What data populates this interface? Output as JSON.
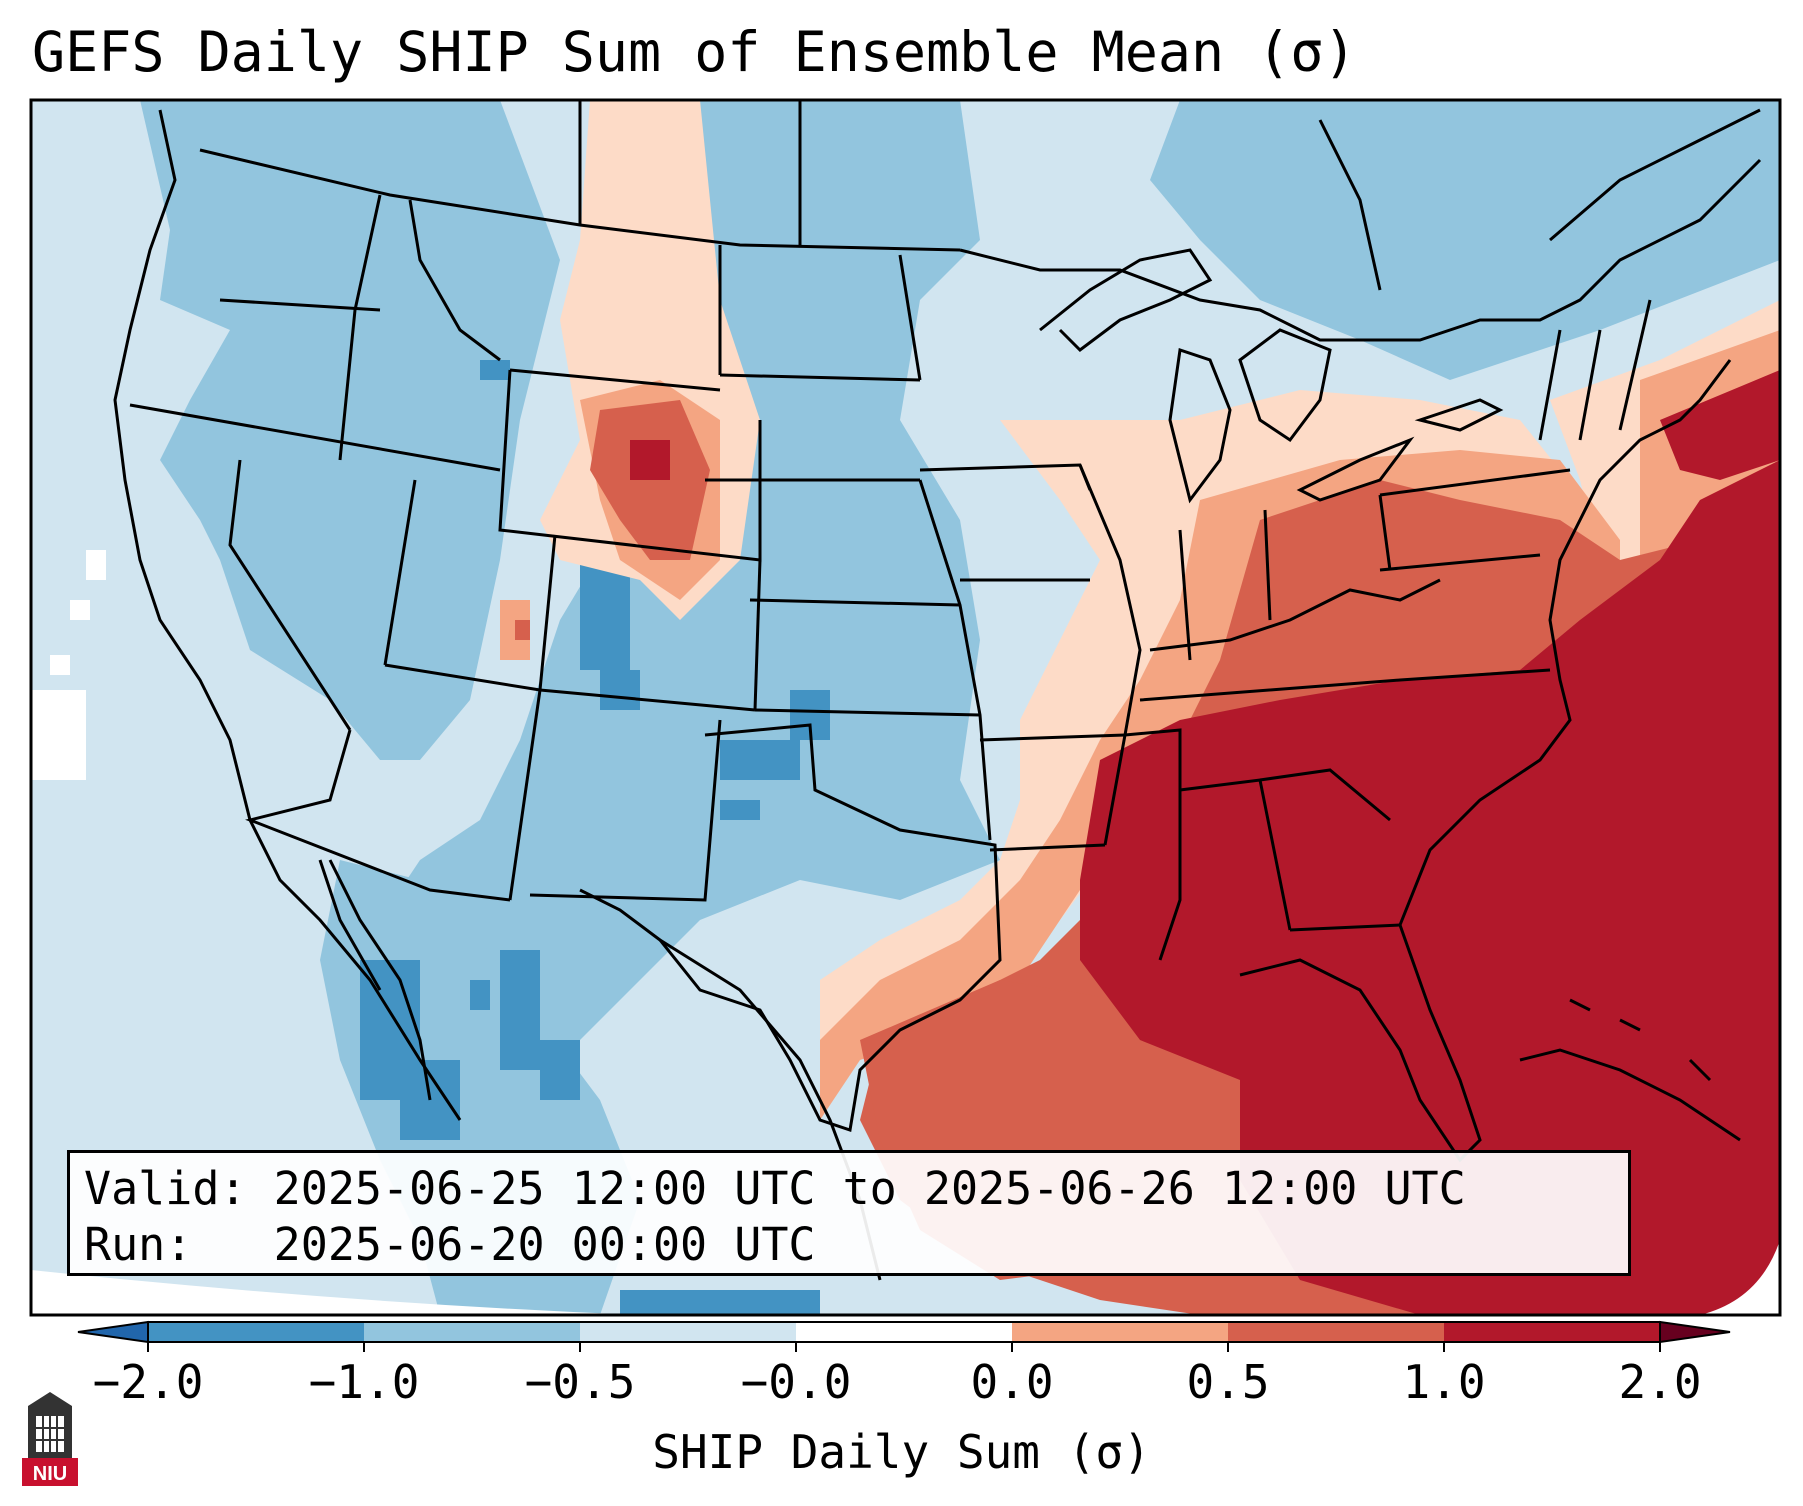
{
  "title": "GEFS Daily SHIP Sum of Ensemble Mean (σ)",
  "info": {
    "valid_label": "Valid:",
    "valid_value": "2025-06-25 12:00 UTC to 2025-06-26 12:00 UTC",
    "run_label": "Run:",
    "run_value": "2025-06-20 00:00 UTC"
  },
  "colorbar": {
    "label": "SHIP Daily Sum (σ)",
    "ticks": [
      "−2.0",
      "−1.0",
      "−0.5",
      "−0.0",
      "0.0",
      "0.5",
      "1.0",
      "2.0"
    ],
    "bin_colors": [
      "#4393c3",
      "#92c5de",
      "#d1e5f0",
      "#ffffff",
      "#fddbc7",
      "#f4a582",
      "#d6604d",
      "#b2182b"
    ],
    "under_color": "#2166ac",
    "over_color": "#67001f"
  },
  "logo": {
    "text": "NIU"
  },
  "colors": {
    "outside": "#ffffff",
    "frame": "#000000",
    "borders": "#000000"
  }
}
